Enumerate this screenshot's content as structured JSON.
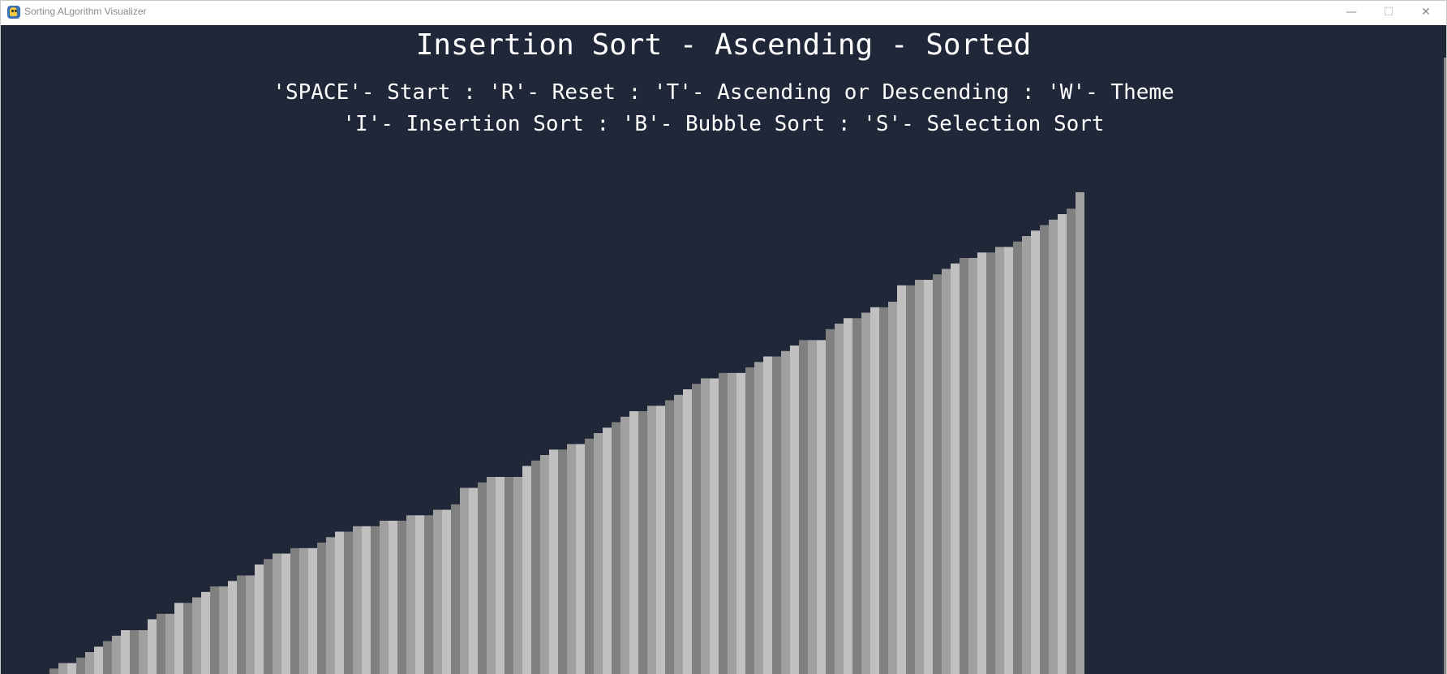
{
  "window": {
    "title": "Sorting ALgorithm Visualizer",
    "icon": "python-icon",
    "controls": {
      "minimize": "—",
      "maximize": "☐",
      "close": "✕"
    }
  },
  "header": {
    "title": "Insertion Sort - Ascending - Sorted",
    "help_line1": "'SPACE'- Start : 'R'- Reset : 'T'- Ascending or Descending : 'W'- Theme",
    "help_line2": "'I'- Insertion Sort : 'B'- Bubble Sort : 'S'- Selection Sort"
  },
  "theme": {
    "background": "#1f2738",
    "bar_colors": [
      "#808080",
      "#a0a0a0",
      "#c0c0c0"
    ]
  },
  "chart_data": {
    "type": "bar",
    "order": "ascending",
    "state": "sorted",
    "ylim": [
      0,
      100
    ],
    "values": [
      1,
      2,
      2,
      3,
      4,
      5,
      6,
      7,
      8,
      8,
      8,
      10,
      11,
      11,
      13,
      13,
      14,
      15,
      16,
      16,
      17,
      18,
      18,
      20,
      21,
      22,
      22,
      23,
      23,
      23,
      24,
      25,
      26,
      26,
      27,
      27,
      27,
      28,
      28,
      28,
      29,
      29,
      29,
      30,
      30,
      31,
      34,
      34,
      35,
      36,
      36,
      36,
      36,
      38,
      39,
      40,
      41,
      41,
      42,
      42,
      43,
      44,
      45,
      46,
      47,
      48,
      48,
      49,
      49,
      50,
      51,
      52,
      53,
      54,
      54,
      55,
      55,
      55,
      56,
      57,
      58,
      58,
      59,
      60,
      61,
      61,
      61,
      63,
      64,
      65,
      65,
      66,
      67,
      67,
      68,
      71,
      71,
      72,
      72,
      73,
      74,
      75,
      76,
      76,
      77,
      77,
      78,
      78,
      79,
      80,
      81,
      82,
      83,
      84,
      85,
      88
    ]
  }
}
